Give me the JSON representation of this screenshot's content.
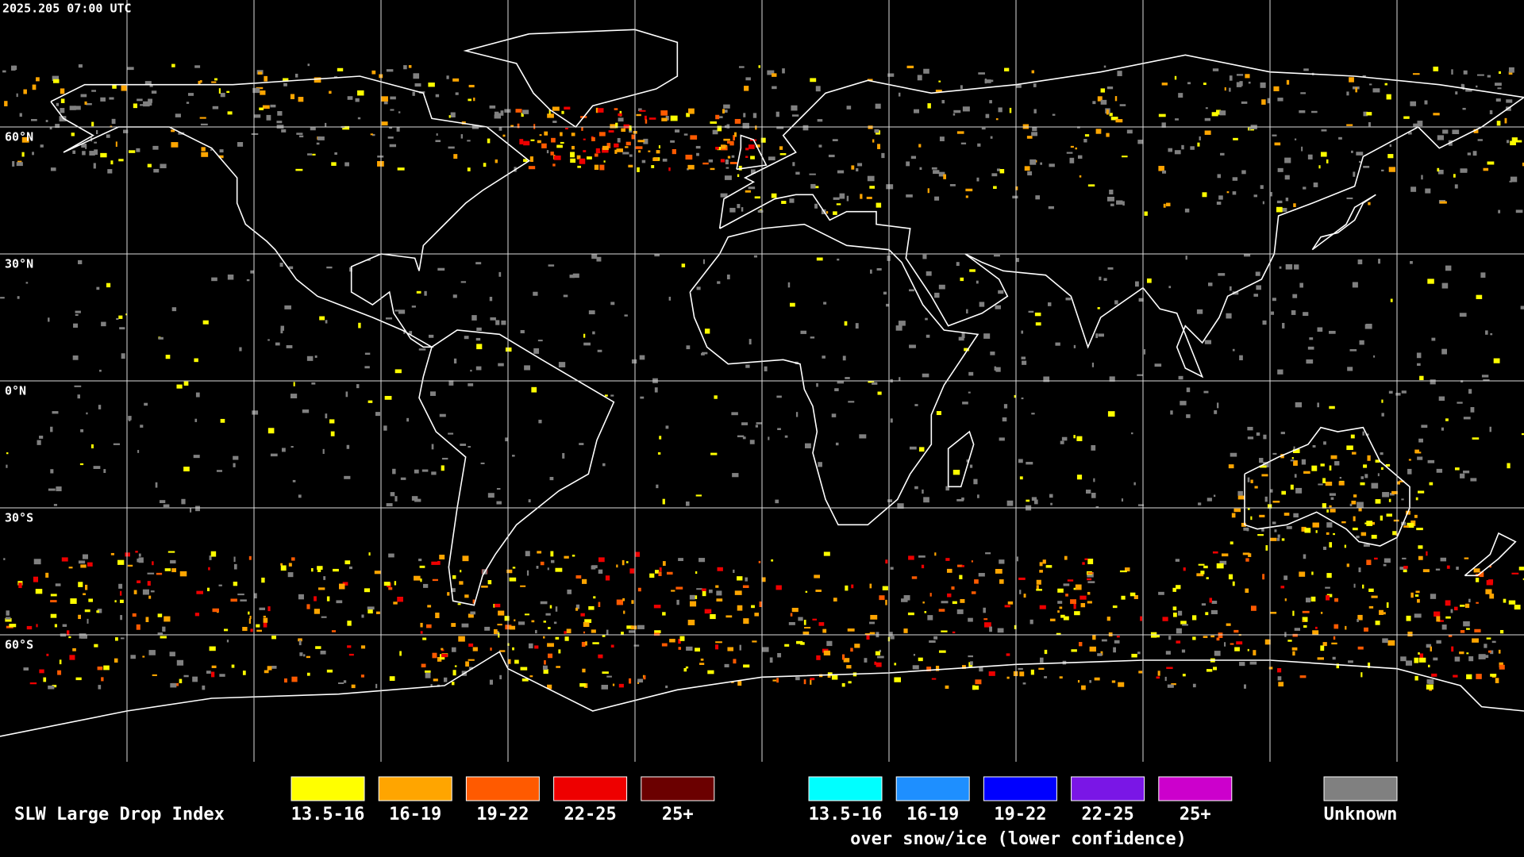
{
  "header": {
    "timestamp": "2025.205 07:00 UTC"
  },
  "grid": {
    "lat_labels": [
      "60°N",
      "30°N",
      "0°N",
      "30°S",
      "60°S"
    ]
  },
  "legend": {
    "title": "SLW Large Drop Index",
    "normal": [
      {
        "label": "13.5-16",
        "color": "#ffff00"
      },
      {
        "label": "16-19",
        "color": "#ffa500"
      },
      {
        "label": "19-22",
        "color": "#ff5a00"
      },
      {
        "label": "22-25",
        "color": "#ee0000"
      },
      {
        "label": "25+",
        "color": "#6b0000"
      }
    ],
    "snow": [
      {
        "label": "13.5-16",
        "color": "#00ffff"
      },
      {
        "label": "16-19",
        "color": "#1e8fff"
      },
      {
        "label": "19-22",
        "color": "#0000ff"
      },
      {
        "label": "22-25",
        "color": "#7a16e6"
      },
      {
        "label": "25+",
        "color": "#cc00cc"
      }
    ],
    "note": "over snow/ice (lower confidence)",
    "unknown": {
      "label": "Unknown",
      "color": "#808080"
    }
  }
}
